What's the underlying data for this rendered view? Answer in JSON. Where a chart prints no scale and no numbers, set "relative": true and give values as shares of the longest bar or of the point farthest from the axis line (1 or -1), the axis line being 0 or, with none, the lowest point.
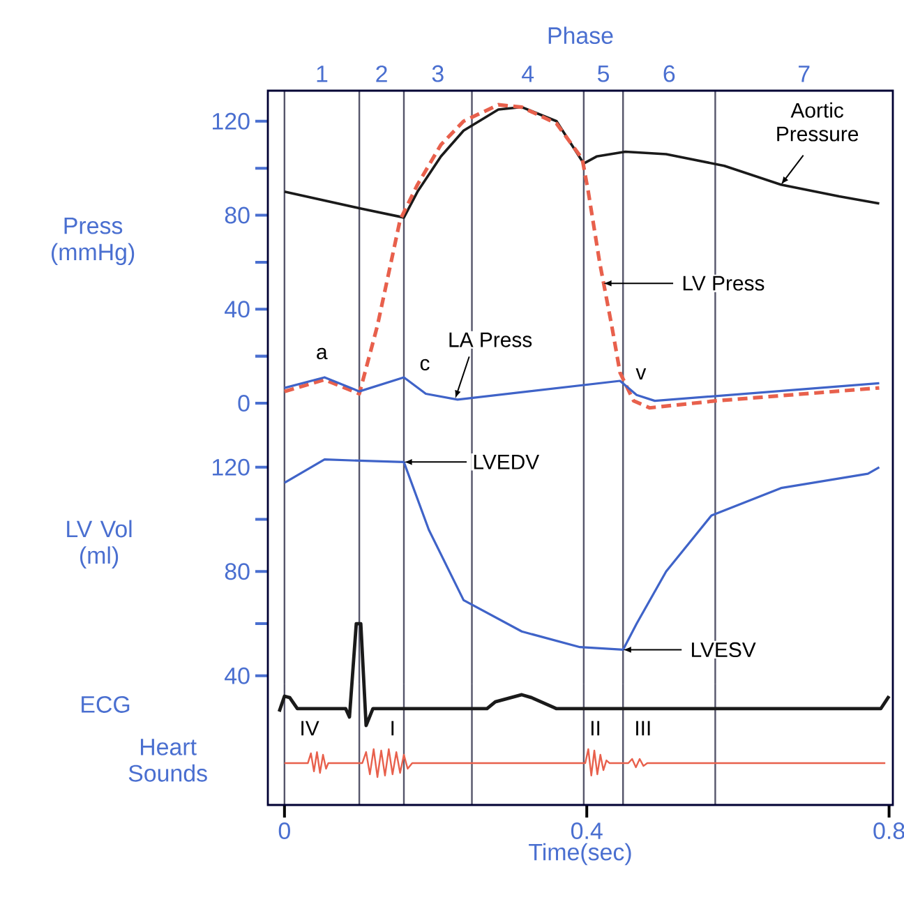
{
  "chart_data": [
    {
      "type": "line",
      "title": "Phase",
      "ylabel": "Press (mmHg)",
      "xlim": [
        -0.022,
        0.805
      ],
      "tick_labels": "y",
      "ylim": [
        -9.5,
        133
      ],
      "yticks": [
        0,
        {
          "value": 20,
          "label": null
        },
        40,
        {
          "value": 60,
          "label": null
        },
        80,
        {
          "value": 100,
          "label": null
        },
        120
      ],
      "series": [
        {
          "color": "#1a1a1a",
          "x": [
            0,
            0.099,
            0.158,
            0.176,
            0.207,
            0.237,
            0.283,
            0.314,
            0.36,
            0.396,
            0.413,
            0.451,
            0.505,
            0.582,
            0.657,
            0.734,
            0.787
          ],
          "values": [
            90,
            83,
            79,
            90,
            105,
            116,
            125,
            126,
            120,
            102,
            105,
            107,
            106,
            101,
            93,
            88,
            85
          ]
        },
        {
          "color": "#e8604c",
          "line_style": "dashed",
          "x": [
            0,
            0.053,
            0.099,
            0.123,
            0.153,
            0.176,
            0.207,
            0.237,
            0.283,
            0.314,
            0.36,
            0.394,
            0.402,
            0.417,
            0.433,
            0.444,
            0.462,
            0.483,
            0.571,
            0.787
          ],
          "values": [
            5,
            10,
            4,
            33,
            78,
            93,
            110,
            120,
            127,
            126,
            119,
            104,
            90,
            60,
            33,
            13,
            1,
            -2,
            1,
            6.5
          ]
        },
        {
          "color": "#3f63c8",
          "x": [
            0,
            0.053,
            0.099,
            0.158,
            0.187,
            0.229,
            0.444,
            0.466,
            0.49,
            0.787
          ],
          "values": [
            6.5,
            11,
            5,
            11,
            4,
            1.5,
            9.5,
            3.5,
            1,
            8.5
          ]
        }
      ],
      "ref_lines": [
        {
          "axis": "x",
          "value": 0,
          "color": "#55556a"
        },
        {
          "axis": "x",
          "value": 0.099,
          "color": "#55556a"
        },
        {
          "axis": "x",
          "value": 0.158,
          "color": "#55556a"
        },
        {
          "axis": "x",
          "value": 0.248,
          "color": "#55556a"
        },
        {
          "axis": "x",
          "value": 0.396,
          "color": "#55556a"
        },
        {
          "axis": "x",
          "value": 0.448,
          "color": "#55556a"
        },
        {
          "axis": "x",
          "value": 0.57,
          "color": "#55556a"
        }
      ],
      "annotations": [
        {
          "text": "Aortic Pressure",
          "x": 0.657,
          "y": 93
        },
        {
          "text": "LV Press",
          "x": 0.422,
          "y": 51
        },
        {
          "text": "LA Press",
          "x": 0.226,
          "y": 2
        },
        {
          "text": "a",
          "x": 0.053,
          "y": 11
        },
        {
          "text": "c",
          "x": 0.158,
          "y": 11
        },
        {
          "text": "v",
          "x": 0.444,
          "y": 9.5
        },
        "1",
        "2",
        "3",
        "4",
        "5",
        "6",
        "7"
      ]
    },
    {
      "type": "line",
      "ylabel": "LV Vol (ml)",
      "xlim": [
        -0.022,
        0.805
      ],
      "tick_labels": "y",
      "ylim": [
        37,
        136
      ],
      "yticks": [
        40,
        {
          "value": 60,
          "label": null
        },
        80,
        {
          "value": 100,
          "label": null
        },
        120
      ],
      "series": [
        {
          "color": "#3f63c8",
          "x": [
            0,
            0.053,
            0.099,
            0.158,
            0.191,
            0.237,
            0.314,
            0.391,
            0.448,
            0.466,
            0.505,
            0.565,
            0.657,
            0.772,
            0.787
          ],
          "values": [
            114,
            123,
            122.5,
            122,
            96,
            69,
            57,
            51,
            50,
            60,
            80,
            101.5,
            112,
            117.5,
            120
          ]
        }
      ],
      "ref_lines": [
        {
          "axis": "x",
          "value": 0,
          "color": "#55556a"
        },
        {
          "axis": "x",
          "value": 0.099,
          "color": "#55556a"
        },
        {
          "axis": "x",
          "value": 0.158,
          "color": "#55556a"
        },
        {
          "axis": "x",
          "value": 0.248,
          "color": "#55556a"
        },
        {
          "axis": "x",
          "value": 0.396,
          "color": "#55556a"
        },
        {
          "axis": "x",
          "value": 0.448,
          "color": "#55556a"
        },
        {
          "axis": "x",
          "value": 0.57,
          "color": "#55556a"
        }
      ],
      "annotations": [
        {
          "text": "LVEDV",
          "x": 0.158,
          "y": 122
        },
        {
          "text": "LVESV",
          "x": 0.448,
          "y": 50
        }
      ]
    },
    {
      "type": "line",
      "xlabel": "Time(sec)",
      "xlim": [
        -0.022,
        0.805
      ],
      "xticks": [
        0,
        0.4,
        0.8
      ],
      "relative": true,
      "tick_labels": "x",
      "series": [
        {
          "color": "#1a1a1a",
          "x": [
            -0.007,
            0,
            0.007,
            0.017,
            0.026,
            0.081,
            0.086,
            0.095,
            0.101,
            0.108,
            0.117,
            0.268,
            0.279,
            0.314,
            0.327,
            0.36,
            0.543,
            0.789,
            0.8
          ],
          "values": [
            0.515,
            0.6,
            0.592,
            0.531,
            0.531,
            0.531,
            0.485,
            1,
            1,
            0.438,
            0.531,
            0.531,
            0.569,
            0.608,
            0.592,
            0.531,
            0.531,
            0.531,
            0.6
          ]
        },
        {
          "color": "#e8604c",
          "x": [
            0,
            0.031,
            0.035,
            0.039,
            0.043,
            0.047,
            0.051,
            0.055,
            0.058,
            0.103,
            0.108,
            0.113,
            0.118,
            0.123,
            0.128,
            0.133,
            0.138,
            0.143,
            0.148,
            0.153,
            0.158,
            0.163,
            0.169,
            0.398,
            0.402,
            0.406,
            0.41,
            0.414,
            0.418,
            0.422,
            0.426,
            0.43,
            0.455,
            0.46,
            0.465,
            0.47,
            0.475,
            0.48,
            0.795
          ],
          "values": [
            0.231,
            0.231,
            0.285,
            0.185,
            0.292,
            0.177,
            0.277,
            0.2,
            0.231,
            0.231,
            0.292,
            0.169,
            0.308,
            0.154,
            0.3,
            0.162,
            0.308,
            0.169,
            0.292,
            0.177,
            0.277,
            0.2,
            0.231,
            0.231,
            0.308,
            0.162,
            0.3,
            0.169,
            0.277,
            0.192,
            0.246,
            0.231,
            0.231,
            0.254,
            0.208,
            0.254,
            0.215,
            0.231,
            0.231
          ]
        }
      ],
      "ref_lines": [
        {
          "axis": "x",
          "value": 0,
          "color": "#55556a"
        },
        {
          "axis": "x",
          "value": 0.099,
          "color": "#55556a"
        },
        {
          "axis": "x",
          "value": 0.158,
          "color": "#55556a"
        },
        {
          "axis": "x",
          "value": 0.248,
          "color": "#55556a"
        },
        {
          "axis": "x",
          "value": 0.396,
          "color": "#55556a"
        },
        {
          "axis": "x",
          "value": 0.448,
          "color": "#55556a"
        },
        {
          "axis": "x",
          "value": 0.57,
          "color": "#55556a"
        }
      ],
      "annotations": [
        {
          "text": "IV",
          "x": 0.033,
          "y": 0.231
        },
        {
          "text": "I",
          "x": 0.143,
          "y": 0.231
        },
        {
          "text": "II",
          "x": 0.404,
          "y": 0.231
        },
        {
          "text": "III",
          "x": 0.467,
          "y": 0.231
        },
        "ECG",
        "Heart Sounds"
      ]
    }
  ]
}
